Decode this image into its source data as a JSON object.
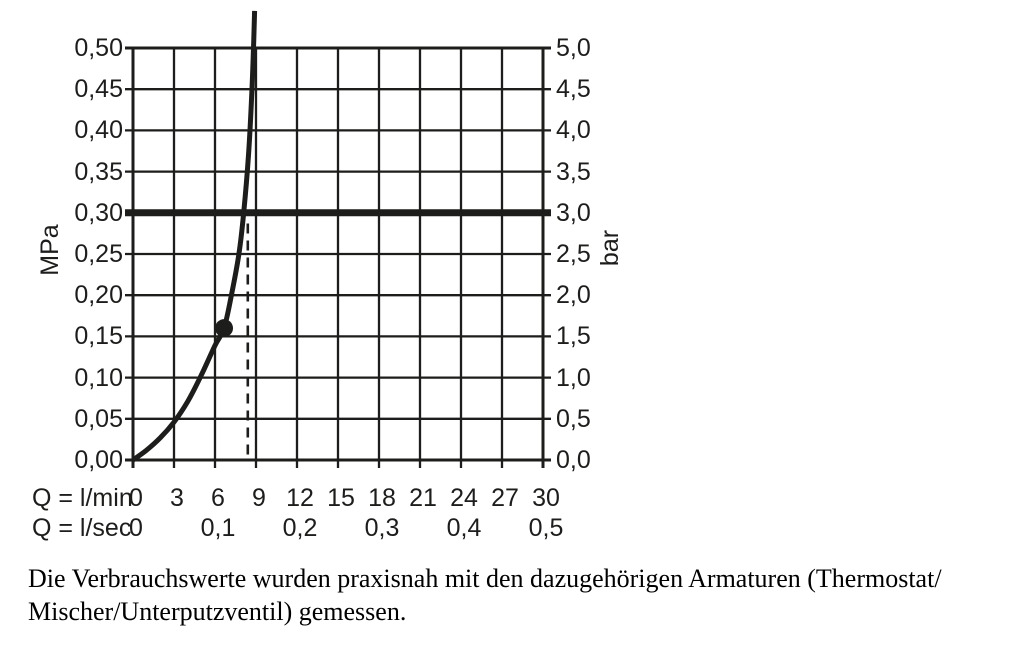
{
  "colors": {
    "ink": "#1d1d1b",
    "background": "#ffffff"
  },
  "chart_data": {
    "type": "line",
    "title": "",
    "grid": true,
    "x_axis": {
      "row1_label": "Q = l/min",
      "row2_label": "Q = l/sec",
      "range_lmin": [
        0,
        30
      ],
      "ticks_lmin": [
        0,
        3,
        6,
        9,
        12,
        15,
        18,
        21,
        24,
        27,
        30
      ],
      "tick_labels_lmin": [
        "0",
        "3",
        "6",
        "9",
        "12",
        "15",
        "18",
        "21",
        "24",
        "27",
        "30"
      ],
      "ticks_lsec_at_lmin": [
        0,
        6,
        12,
        18,
        24,
        30
      ],
      "tick_labels_lsec": [
        "0",
        "0,1",
        "0,2",
        "0,3",
        "0,4",
        "0,5"
      ]
    },
    "y_axis_left": {
      "label": "MPa",
      "range": [
        0,
        0.5
      ],
      "ticks": [
        0,
        0.05,
        0.1,
        0.15,
        0.2,
        0.25,
        0.3,
        0.35,
        0.4,
        0.45,
        0.5
      ],
      "tick_labels": [
        "0,00",
        "0,05",
        "0,10",
        "0,15",
        "0,20",
        "0,25",
        "0,30",
        "0,35",
        "0,40",
        "0,45",
        "0,50"
      ]
    },
    "y_axis_right": {
      "label": "bar",
      "range": [
        0,
        5
      ],
      "ticks": [
        0,
        0.5,
        1.0,
        1.5,
        2.0,
        2.5,
        3.0,
        3.5,
        4.0,
        4.5,
        5.0
      ],
      "tick_labels": [
        "0,0",
        "0,5",
        "1,0",
        "1,5",
        "2,0",
        "2,5",
        "3,0",
        "3,5",
        "4,0",
        "4,5",
        "5,0"
      ]
    },
    "series": [
      {
        "name": "flow-pressure-curve",
        "points_lmin_mpa": [
          [
            0,
            0
          ],
          [
            1,
            0.012
          ],
          [
            2,
            0.027
          ],
          [
            3,
            0.046
          ],
          [
            4,
            0.071
          ],
          [
            5,
            0.103
          ],
          [
            6,
            0.139
          ],
          [
            6.66,
            0.16
          ],
          [
            7.2,
            0.2
          ],
          [
            7.75,
            0.25
          ],
          [
            8.1,
            0.3
          ],
          [
            8.45,
            0.37
          ],
          [
            8.68,
            0.44
          ],
          [
            8.82,
            0.5
          ],
          [
            8.9,
            0.545
          ]
        ]
      }
    ],
    "marker_point_lmin_mpa": [
      6.66,
      0.16
    ],
    "reference_line_mpa": 0.3,
    "dashed_line": {
      "x_lmin": 8.4,
      "from_mpa": 0,
      "to_mpa": 0.287
    }
  },
  "caption": {
    "line1": "Die Verbrauchswerte wurden praxisnah mit den dazugehörigen Armaturen (Thermostat/",
    "line2": "Mischer/Unterputzventil) gemessen."
  }
}
